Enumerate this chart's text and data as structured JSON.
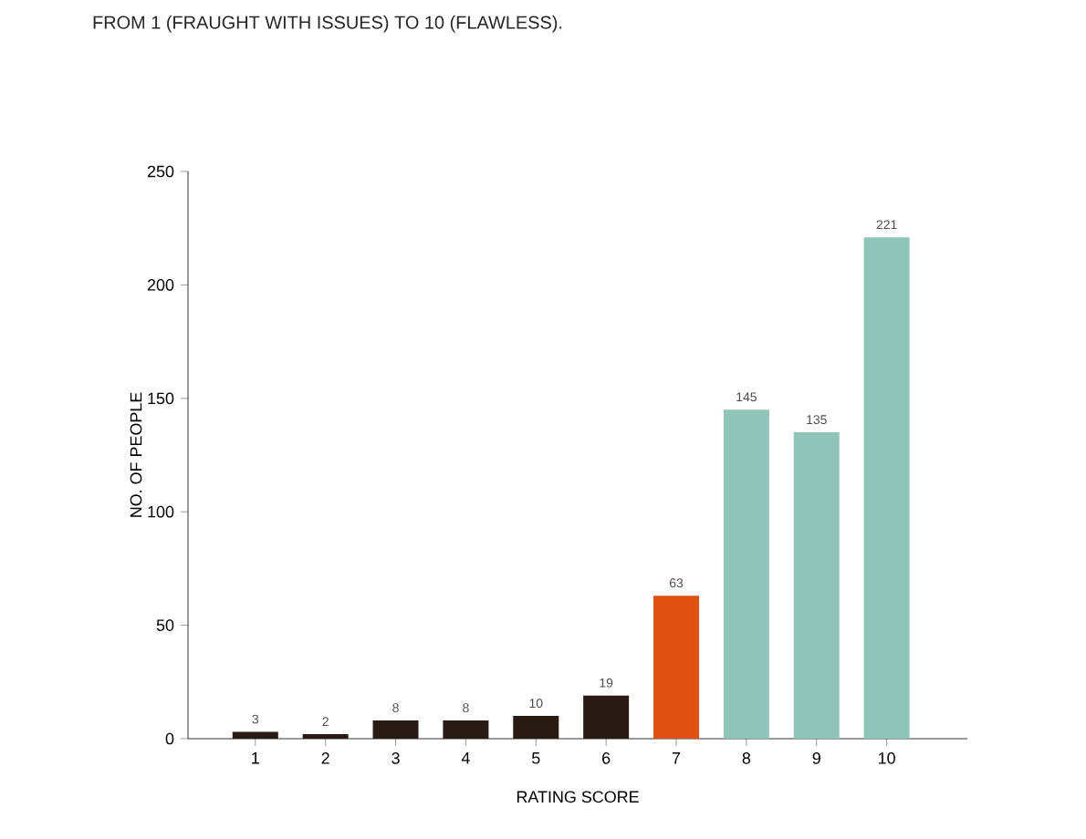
{
  "chart_data": {
    "type": "bar",
    "title": "FROM 1 (FRAUGHT WITH ISSUES) TO 10 (FLAWLESS).",
    "xlabel": "RATING SCORE",
    "ylabel": "NO. OF PEOPLE",
    "categories": [
      "1",
      "2",
      "3",
      "4",
      "5",
      "6",
      "7",
      "8",
      "9",
      "10"
    ],
    "values": [
      3,
      2,
      8,
      8,
      10,
      19,
      63,
      145,
      135,
      221
    ],
    "colors": [
      "#2a1a14",
      "#2a1a14",
      "#2a1a14",
      "#2a1a14",
      "#2a1a14",
      "#2a1a14",
      "#e0500f",
      "#8fc4b8",
      "#8fc4b8",
      "#8fc4b8"
    ],
    "ylim": [
      0,
      250
    ],
    "yticks": [
      0,
      50,
      100,
      150,
      200,
      250
    ],
    "data_labels": true,
    "grid": false
  }
}
